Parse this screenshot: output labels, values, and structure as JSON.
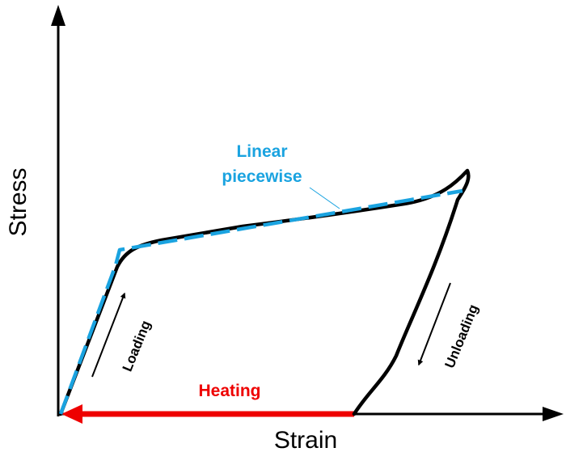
{
  "axes": {
    "x_label": "Strain",
    "y_label": "Stress"
  },
  "annotations": {
    "linear_line1": "Linear",
    "linear_line2": "piecewise",
    "heating": "Heating",
    "loading": "Loading",
    "unloading": "Unloading"
  },
  "colors": {
    "curve": "#000000",
    "piecewise": "#1aa3e0",
    "heating": "#ee0000",
    "axes": "#000000"
  }
}
